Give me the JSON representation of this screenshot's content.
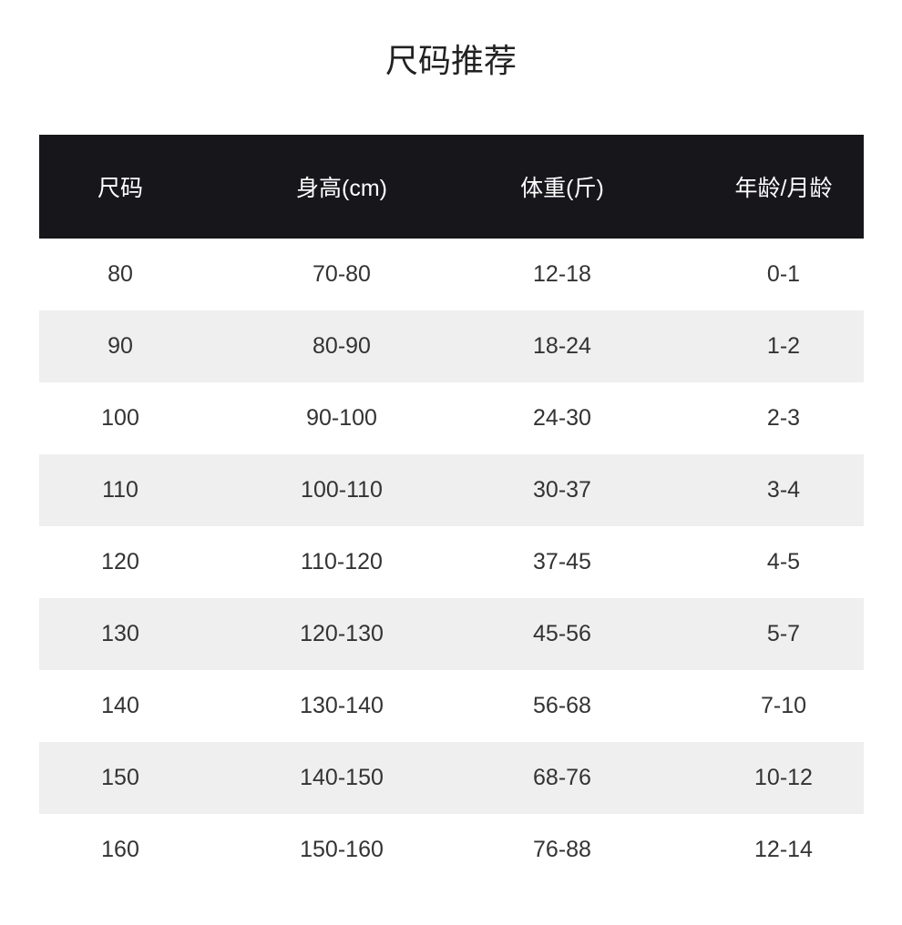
{
  "title": "尺码推荐",
  "table": {
    "headers": [
      "尺码",
      "身高(cm)",
      "体重(斤)",
      "年龄/月龄"
    ],
    "rows": [
      [
        "80",
        "70-80",
        "12-18",
        "0-1"
      ],
      [
        "90",
        "80-90",
        "18-24",
        "1-2"
      ],
      [
        "100",
        "90-100",
        "24-30",
        "2-3"
      ],
      [
        "110",
        "100-110",
        "30-37",
        "3-4"
      ],
      [
        "120",
        "110-120",
        "37-45",
        "4-5"
      ],
      [
        "130",
        "120-130",
        "45-56",
        "5-7"
      ],
      [
        "140",
        "130-140",
        "56-68",
        "7-10"
      ],
      [
        "150",
        "140-150",
        "68-76",
        "10-12"
      ],
      [
        "160",
        "150-160",
        "76-88",
        "12-14"
      ]
    ]
  },
  "colors": {
    "header_bg": "#17161b",
    "alt_row_bg": "#efefef",
    "text": "#333333"
  }
}
